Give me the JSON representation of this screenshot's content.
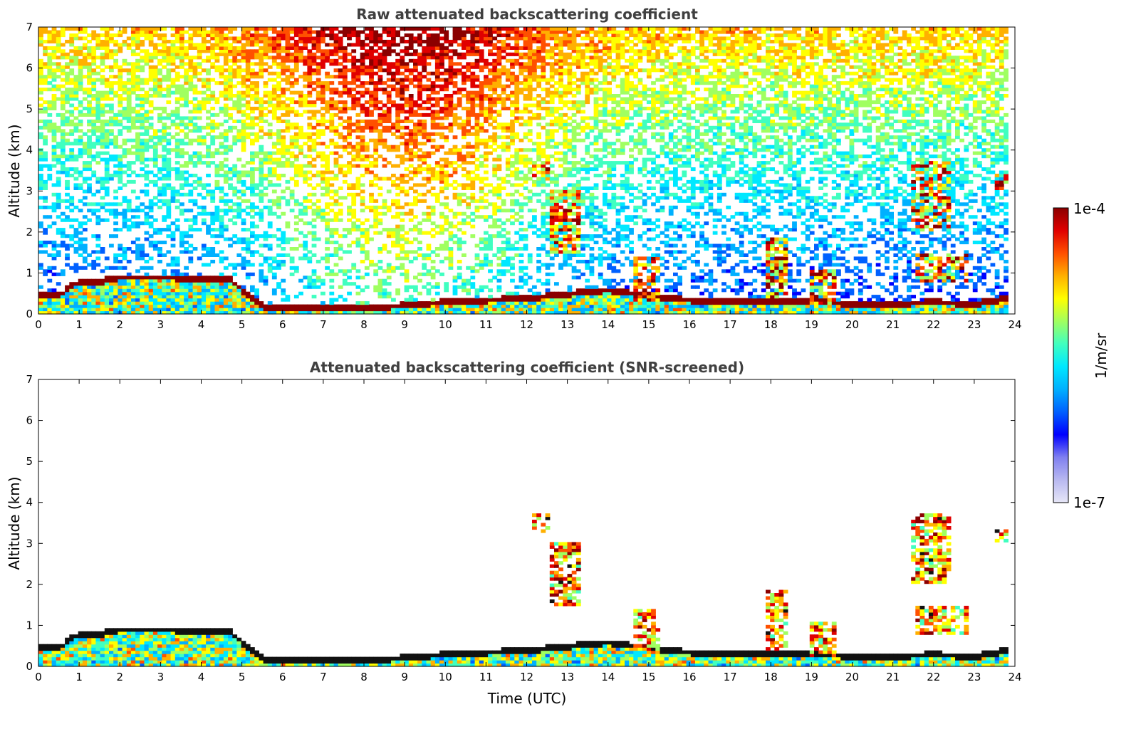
{
  "colorbar": {
    "max_label": "1e-4",
    "min_label": "1e-7",
    "unit_label": "1/m/sr",
    "colormap": [
      "#e6e6f7",
      "#b8b8f0",
      "#7f7ff0",
      "#0000ff",
      "#0060ff",
      "#00b0ff",
      "#00e8ff",
      "#40ffc0",
      "#a0ff60",
      "#ffff00",
      "#ffb000",
      "#ff5000",
      "#e00000",
      "#8b0000"
    ]
  },
  "chart_data": [
    {
      "type": "heatmap",
      "title": "Raw attenuated backscattering coefficient",
      "xlabel": "",
      "ylabel": "Altitude (km)",
      "xlim": [
        0,
        24
      ],
      "ylim": [
        0,
        7
      ],
      "xticks": [
        0,
        1,
        2,
        3,
        4,
        5,
        6,
        7,
        8,
        9,
        10,
        11,
        12,
        13,
        14,
        15,
        16,
        17,
        18,
        19,
        20,
        21,
        22,
        23,
        24
      ],
      "yticks": [
        0,
        1,
        2,
        3,
        4,
        5,
        6,
        7
      ],
      "data_end_hour": 23.83,
      "z_scale": "log10",
      "z_range": [
        1e-07,
        0.0001
      ],
      "boundary_layer_top_km": {
        "time": [
          0,
          0.5,
          0.9,
          1.5,
          2.0,
          3.3,
          4.7,
          5.5,
          6.0,
          8.0,
          10.0,
          12.0,
          13.0,
          14.0,
          15.0,
          16.0,
          17.0,
          18.0,
          19.0,
          20.0,
          21.0,
          22.0,
          23.0,
          23.83
        ],
        "altitude": [
          0.5,
          0.45,
          0.75,
          0.8,
          0.9,
          0.9,
          0.85,
          0.2,
          0.15,
          0.15,
          0.3,
          0.4,
          0.5,
          0.6,
          0.45,
          0.35,
          0.3,
          0.3,
          0.35,
          0.25,
          0.25,
          0.3,
          0.25,
          0.4
        ]
      },
      "cloud_features": [
        {
          "t0": 12.1,
          "t1": 12.6,
          "z0": 3.3,
          "z1": 3.7
        },
        {
          "t0": 12.6,
          "t1": 13.3,
          "z0": 1.5,
          "z1": 3.0
        },
        {
          "t0": 14.6,
          "t1": 15.3,
          "z0": 0.3,
          "z1": 1.4
        },
        {
          "t0": 17.9,
          "t1": 18.4,
          "z0": 0.4,
          "z1": 1.9
        },
        {
          "t0": 19.0,
          "t1": 19.6,
          "z0": 0.2,
          "z1": 1.1
        },
        {
          "t0": 21.4,
          "t1": 22.4,
          "z0": 2.0,
          "z1": 3.7
        },
        {
          "t0": 21.6,
          "t1": 22.9,
          "z0": 0.8,
          "z1": 1.5
        },
        {
          "t0": 23.5,
          "t1": 23.8,
          "z0": 3.0,
          "z1": 3.4
        }
      ]
    },
    {
      "type": "heatmap",
      "title": "Attenuated backscattering coefficient (SNR-screened)",
      "xlabel": "Time (UTC)",
      "ylabel": "Altitude (km)",
      "xlim": [
        0,
        24
      ],
      "ylim": [
        0,
        7
      ],
      "xticks": [
        0,
        1,
        2,
        3,
        4,
        5,
        6,
        7,
        8,
        9,
        10,
        11,
        12,
        13,
        14,
        15,
        16,
        17,
        18,
        19,
        20,
        21,
        22,
        23,
        24
      ],
      "yticks": [
        0,
        1,
        2,
        3,
        4,
        5,
        6,
        7
      ],
      "data_end_hour": 23.83,
      "z_scale": "log10",
      "z_range": [
        1e-07,
        0.0001
      ],
      "screened_above_noise": true
    }
  ]
}
